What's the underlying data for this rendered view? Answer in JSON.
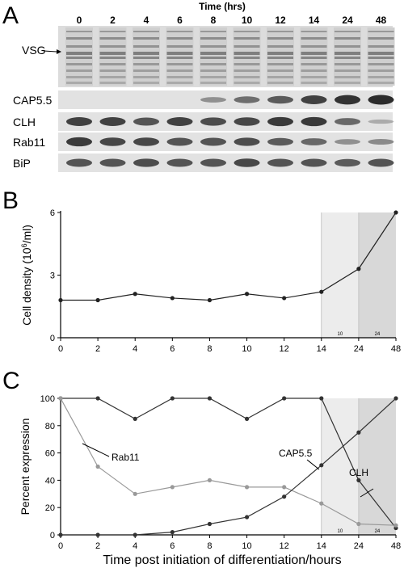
{
  "panels": {
    "a": {
      "letter": "A"
    },
    "b": {
      "letter": "B"
    },
    "c": {
      "letter": "C"
    }
  },
  "blot": {
    "time_header": "Time (hrs)",
    "timepoints": [
      "0",
      "2",
      "4",
      "6",
      "8",
      "10",
      "12",
      "14",
      "24",
      "48"
    ],
    "vsg_label": "VSG",
    "rows": [
      {
        "name": "CAP5.5",
        "intensity": [
          0,
          0,
          0,
          0,
          0.25,
          0.5,
          0.65,
          0.85,
          0.95,
          1.0
        ]
      },
      {
        "name": "CLH",
        "intensity": [
          0.85,
          0.85,
          0.7,
          0.85,
          0.75,
          0.8,
          0.9,
          0.9,
          0.55,
          0.05
        ]
      },
      {
        "name": "Rab11",
        "intensity": [
          0.9,
          0.8,
          0.8,
          0.7,
          0.7,
          0.75,
          0.65,
          0.55,
          0.25,
          0.3
        ]
      },
      {
        "name": "BiP",
        "intensity": [
          0.7,
          0.7,
          0.75,
          0.7,
          0.7,
          0.8,
          0.7,
          0.7,
          0.65,
          0.7
        ]
      }
    ]
  },
  "chart_data": [
    {
      "type": "line",
      "ylabel": "Cell density (10^6/ml)",
      "x": [
        "0",
        "2",
        "4",
        "6",
        "8",
        "10",
        "12",
        "14",
        "24",
        "48"
      ],
      "yticks": [
        "0",
        "3",
        "6"
      ],
      "ylim": [
        0,
        6
      ],
      "values": [
        1.8,
        1.8,
        2.1,
        1.9,
        1.8,
        2.1,
        1.9,
        2.2,
        3.3,
        6.0
      ],
      "shaded_labels": [
        "10",
        "24"
      ]
    },
    {
      "type": "line",
      "ylabel": "Percent expression",
      "xlabel": "Time post initiation of differentiation/hours",
      "x": [
        "0",
        "2",
        "4",
        "6",
        "8",
        "10",
        "12",
        "14",
        "24",
        "48"
      ],
      "yticks": [
        "0",
        "20",
        "40",
        "60",
        "80",
        "100"
      ],
      "ylim": [
        0,
        100
      ],
      "shaded_labels": [
        "10",
        "24"
      ],
      "series": [
        {
          "name": "CLH",
          "values": [
            100,
            100,
            85,
            100,
            100,
            85,
            100,
            100,
            40,
            5
          ],
          "color": "#333333"
        },
        {
          "name": "Rab11",
          "values": [
            100,
            50,
            30,
            35,
            40,
            35,
            35,
            23,
            8,
            7
          ],
          "color": "#999999"
        },
        {
          "name": "CAP5.5",
          "values": [
            0,
            0,
            0,
            2,
            8,
            13,
            28,
            51,
            75,
            100
          ],
          "color": "#333333"
        }
      ]
    }
  ]
}
